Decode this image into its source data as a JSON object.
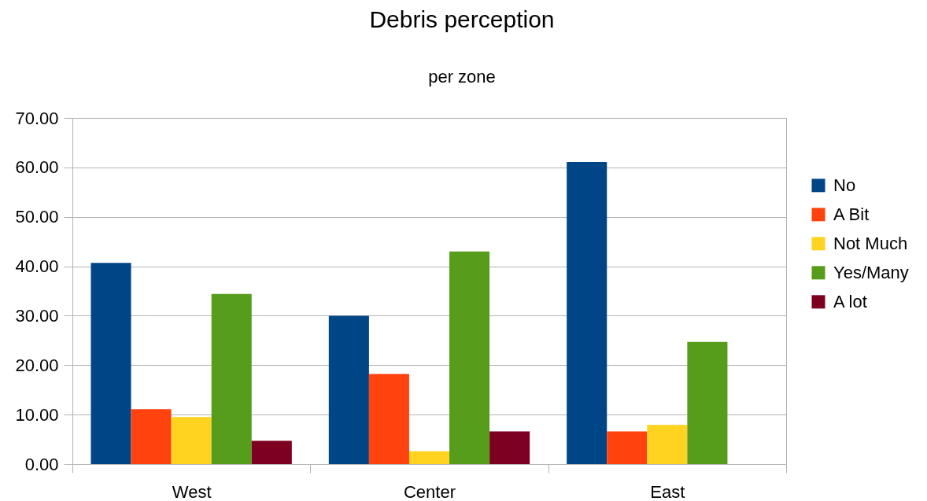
{
  "chart_data": {
    "type": "bar",
    "title": "Debris perception",
    "subtitle": "per zone",
    "categories": [
      "West",
      "Center",
      "East"
    ],
    "series": [
      {
        "name": "No",
        "color": "#004586",
        "values": [
          40.7,
          30.0,
          61.1
        ]
      },
      {
        "name": "A Bit",
        "color": "#ff420e",
        "values": [
          11.1,
          18.2,
          6.6
        ]
      },
      {
        "name": "Not Much",
        "color": "#ffd320",
        "values": [
          9.5,
          2.6,
          7.9
        ]
      },
      {
        "name": "Yes/Many",
        "color": "#579d1c",
        "values": [
          34.4,
          43.0,
          24.7
        ]
      },
      {
        "name": "A lot",
        "color": "#7e0021",
        "values": [
          4.7,
          6.6,
          null
        ]
      }
    ],
    "ylim": [
      0,
      70
    ],
    "yticks": [
      {
        "value": 0,
        "label": "0.00"
      },
      {
        "value": 10,
        "label": "10.00"
      },
      {
        "value": 20,
        "label": "20.00"
      },
      {
        "value": 30,
        "label": "30.00"
      },
      {
        "value": 40,
        "label": "40.00"
      },
      {
        "value": 50,
        "label": "50.00"
      },
      {
        "value": 60,
        "label": "60.00"
      },
      {
        "value": 70,
        "label": "70.00"
      }
    ],
    "grid": "y",
    "legend": "right"
  }
}
